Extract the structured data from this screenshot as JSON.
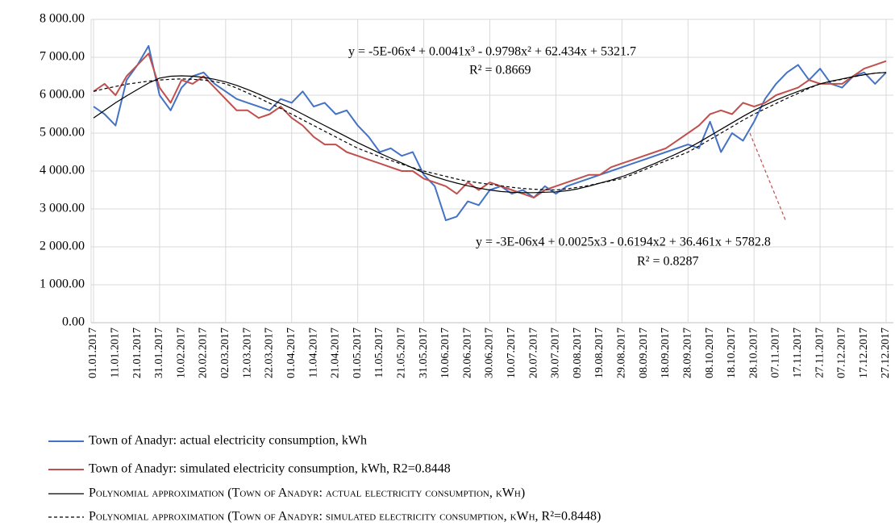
{
  "chart_data": {
    "type": "line",
    "categories": [
      "01.01.2017",
      null,
      "11.01.2017",
      null,
      "21.01.2017",
      null,
      "31.01.2017",
      null,
      "10.02.2017",
      null,
      "20.02.2017",
      null,
      "02.03.2017",
      null,
      "12.03.2017",
      null,
      "22.03.2017",
      null,
      "01.04.2017",
      null,
      "11.04.2017",
      null,
      "21.04.2017",
      null,
      "01.05.2017",
      null,
      "11.05.2017",
      null,
      "21.05.2017",
      null,
      "31.05.2017",
      null,
      "10.06.2017",
      null,
      "20.06.2017",
      null,
      "30.06.2017",
      null,
      "10.07.2017",
      null,
      "20.07.2017",
      null,
      "30.07.2017",
      null,
      "09.08.2017",
      null,
      "19.08.2017",
      null,
      "29.08.2017",
      null,
      "08.09.2017",
      null,
      "18.09.2017",
      null,
      "28.09.2017",
      null,
      "08.10.2017",
      null,
      "18.10.2017",
      null,
      "28.10.2017",
      null,
      "07.11.2017",
      null,
      "17.11.2017",
      null,
      "27.11.2017",
      null,
      "07.12.2017",
      null,
      "17.12.2017",
      null,
      "27.12.2017"
    ],
    "series": [
      {
        "name": "Town of Anadyr: actual electricity consumption, kWh",
        "color": "#4472c4",
        "line_style": "solid",
        "values": [
          5700,
          5500,
          5200,
          6400,
          6800,
          7300,
          6000,
          5600,
          6200,
          6500,
          6600,
          6300,
          6100,
          5900,
          5800,
          5700,
          5600,
          5900,
          5800,
          6100,
          5700,
          5800,
          5500,
          5600,
          5200,
          4900,
          4500,
          4600,
          4400,
          4500,
          3900,
          3600,
          2700,
          2800,
          3200,
          3100,
          3500,
          3600,
          3400,
          3500,
          3300,
          3600,
          3400,
          3600,
          3700,
          3800,
          3900,
          4000,
          4100,
          4200,
          4300,
          4400,
          4500,
          4600,
          4700,
          4600,
          5300,
          4500,
          5000,
          4800,
          5300,
          5900,
          6300,
          6600,
          6800,
          6400,
          6700,
          6300,
          6200,
          6500,
          6600,
          6300,
          6600
        ]
      },
      {
        "name": "Town of Anadyr: simulated electricity consumption, kWh, R2=0.8448",
        "color": "#c0504d",
        "line_style": "solid",
        "values": [
          6100,
          6300,
          6000,
          6500,
          6800,
          7100,
          6200,
          5800,
          6400,
          6300,
          6500,
          6200,
          5900,
          5600,
          5600,
          5400,
          5500,
          5700,
          5400,
          5200,
          4900,
          4700,
          4700,
          4500,
          4400,
          4300,
          4200,
          4100,
          4000,
          4000,
          3800,
          3700,
          3600,
          3400,
          3700,
          3500,
          3700,
          3600,
          3500,
          3400,
          3300,
          3500,
          3600,
          3700,
          3800,
          3900,
          3900,
          4100,
          4200,
          4300,
          4400,
          4500,
          4600,
          4800,
          5000,
          5200,
          5500,
          5600,
          5500,
          5800,
          5700,
          5800,
          6000,
          6100,
          6200,
          6400,
          6300,
          6300,
          6300,
          6500,
          6700,
          6800,
          6900
        ]
      },
      {
        "name": "Polynomial approximation (Town of Anadyr: actual electricity consumption, kWh)",
        "color": "#000000",
        "line_style": "solid",
        "values": [
          5400,
          5600,
          5800,
          5980,
          6150,
          6320,
          6450,
          6500,
          6510,
          6500,
          6470,
          6420,
          6350,
          6260,
          6150,
          6030,
          5900,
          5780,
          5650,
          5500,
          5350,
          5200,
          5050,
          4900,
          4750,
          4610,
          4470,
          4340,
          4210,
          4080,
          3950,
          3850,
          3760,
          3680,
          3610,
          3550,
          3500,
          3460,
          3440,
          3430,
          3430,
          3440,
          3450,
          3480,
          3530,
          3600,
          3680,
          3760,
          3850,
          3960,
          4080,
          4200,
          4330,
          4460,
          4600,
          4760,
          4930,
          5100,
          5270,
          5440,
          5600,
          5740,
          5870,
          5990,
          6100,
          6200,
          6300,
          6370,
          6430,
          6490,
          6540,
          6580,
          6600
        ]
      },
      {
        "name": "Polynomial approximation (Town of Anadyr: simulated electricity consumption, kWh, R²=0.8448)",
        "color": "#000000",
        "line_style": "dashed",
        "values": [
          6100,
          6170,
          6230,
          6290,
          6330,
          6370,
          6400,
          6420,
          6430,
          6420,
          6400,
          6360,
          6300,
          6190,
          6060,
          5930,
          5790,
          5650,
          5500,
          5350,
          5200,
          5050,
          4900,
          4750,
          4600,
          4490,
          4380,
          4280,
          4180,
          4090,
          4000,
          3930,
          3860,
          3790,
          3730,
          3690,
          3650,
          3610,
          3570,
          3540,
          3520,
          3510,
          3500,
          3530,
          3570,
          3620,
          3680,
          3740,
          3800,
          3910,
          4030,
          4150,
          4270,
          4380,
          4500,
          4660,
          4830,
          5000,
          5170,
          5340,
          5500,
          5640,
          5780,
          5920,
          6050,
          6180,
          6300,
          6360,
          6420,
          6480,
          6540,
          6580,
          6600
        ]
      }
    ],
    "ylim": [
      0,
      8000
    ],
    "yticks": [
      {
        "value": 0,
        "label": "0.00"
      },
      {
        "value": 1000,
        "label": "1 000.00"
      },
      {
        "value": 2000,
        "label": "2 000.00"
      },
      {
        "value": 3000,
        "label": "3 000.00"
      },
      {
        "value": 4000,
        "label": "4 000.00"
      },
      {
        "value": 5000,
        "label": "5 000.00"
      },
      {
        "value": 6000,
        "label": "6 000.00"
      },
      {
        "value": 7000,
        "label": "7 000.00"
      },
      {
        "value": 8000,
        "label": "8 000.00"
      }
    ],
    "grid": true,
    "legend": "bottom",
    "annotations": [
      {
        "text": "y = -5E-06x⁴ + 0.0041x³ - 0.9798x² + 62.434x + 5321.7"
      },
      {
        "text": "R² = 0.8669"
      },
      {
        "text": "y = -3E-06x4 + 0.0025x3 - 0.6194x2 + 36.461x + 5782.8"
      },
      {
        "text": "R² = 0.8287"
      }
    ]
  }
}
